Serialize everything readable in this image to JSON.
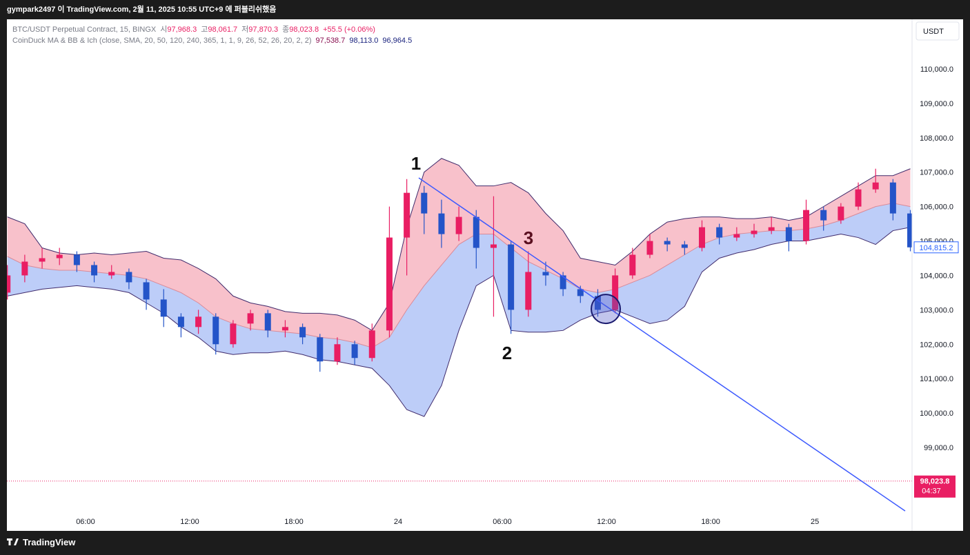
{
  "header": {
    "publisher": "gympark2497 이 TradingView.com, 2월 11, 2025 10:55 UTC+9 에 퍼블리쉬했음"
  },
  "legend": {
    "symbol": "BTC/USDT Perpetual Contract, 15, BINGX",
    "o_label": "시",
    "o": "97,968.3",
    "h_label": "고",
    "h": "98,061.7",
    "l_label": "저",
    "l": "97,870.3",
    "c_label": "종",
    "c": "98,023.8",
    "change": "+55.5 (+0.06%)",
    "indicator": "CoinDuck MA & BB & Ich (close, SMA, 20, 50, 120, 240, 365, 1, 1, 9, 26, 52, 26, 20, 2, 2)",
    "ind_values": [
      "97,538.7",
      "98,113.0",
      "96,964.5"
    ]
  },
  "currency_button": "USDT",
  "footer": {
    "brand": "TradingView"
  },
  "chart_data": {
    "type": "candlestick",
    "up_color": "#e91e63",
    "down_color": "#2454c8",
    "ylim": [
      96576,
      111402
    ],
    "yticks": [
      {
        "value": 99000,
        "label": "99,000.0"
      },
      {
        "value": 100000,
        "label": "100,000.0"
      },
      {
        "value": 101000,
        "label": "101,000.0"
      },
      {
        "value": 102000,
        "label": "102,000.0"
      },
      {
        "value": 103000,
        "label": "103,000.0"
      },
      {
        "value": 104000,
        "label": "104,000.0"
      },
      {
        "value": 105000,
        "label": "105,000.0"
      },
      {
        "value": 106000,
        "label": "106,000.0"
      },
      {
        "value": 107000,
        "label": "107,000.0"
      },
      {
        "value": 108000,
        "label": "108,000.0"
      },
      {
        "value": 109000,
        "label": "109,000.0"
      },
      {
        "value": 110000,
        "label": "110,000.0"
      }
    ],
    "xticks": [
      {
        "value": 4.5,
        "label": "06:00"
      },
      {
        "value": 10.5,
        "label": "12:00"
      },
      {
        "value": 16.5,
        "label": "18:00"
      },
      {
        "value": 22.5,
        "label": "24"
      },
      {
        "value": 28.5,
        "label": "06:00"
      },
      {
        "value": 34.5,
        "label": "12:00"
      },
      {
        "value": 40.5,
        "label": "18:00"
      },
      {
        "value": 46.5,
        "label": "25"
      }
    ],
    "grid": false,
    "candles": [
      [
        103500,
        104300,
        103300,
        104000
      ],
      [
        104000,
        104600,
        103800,
        104400
      ],
      [
        104400,
        104800,
        104200,
        104500
      ],
      [
        104500,
        104800,
        104300,
        104600
      ],
      [
        104600,
        104700,
        104100,
        104300
      ],
      [
        104300,
        104400,
        103800,
        104000
      ],
      [
        104000,
        104300,
        103900,
        104100
      ],
      [
        104100,
        104200,
        103600,
        103800
      ],
      [
        103800,
        103900,
        103000,
        103300
      ],
      [
        103300,
        103600,
        102500,
        102800
      ],
      [
        102800,
        102900,
        102200,
        102500
      ],
      [
        102500,
        103000,
        102300,
        102800
      ],
      [
        102800,
        102900,
        101700,
        102000
      ],
      [
        102000,
        102700,
        101900,
        102600
      ],
      [
        102600,
        103000,
        102400,
        102900
      ],
      [
        102900,
        103000,
        102200,
        102400
      ],
      [
        102400,
        102700,
        102200,
        102500
      ],
      [
        102500,
        102600,
        102000,
        102200
      ],
      [
        102200,
        102300,
        101200,
        101500
      ],
      [
        101500,
        102200,
        101400,
        102000
      ],
      [
        102000,
        102100,
        101400,
        101600
      ],
      [
        101600,
        102600,
        101500,
        102400
      ],
      [
        102400,
        106000,
        102200,
        105100
      ],
      [
        105100,
        106800,
        104000,
        106400
      ],
      [
        106400,
        106600,
        105200,
        105800
      ],
      [
        105800,
        106200,
        104800,
        105200
      ],
      [
        105200,
        106000,
        105000,
        105700
      ],
      [
        105700,
        105900,
        104200,
        104800
      ],
      [
        104800,
        106300,
        102800,
        104900
      ],
      [
        104900,
        105000,
        102300,
        103000
      ],
      [
        103000,
        104700,
        102800,
        104100
      ],
      [
        104100,
        104400,
        103700,
        104000
      ],
      [
        104000,
        104100,
        103400,
        103600
      ],
      [
        103600,
        103700,
        103200,
        103400
      ],
      [
        103400,
        103600,
        102800,
        103000
      ],
      [
        103000,
        104200,
        102900,
        104000
      ],
      [
        104000,
        104800,
        103900,
        104600
      ],
      [
        104600,
        105200,
        104500,
        105000
      ],
      [
        105000,
        105100,
        104700,
        104900
      ],
      [
        104900,
        105000,
        104600,
        104800
      ],
      [
        104800,
        105600,
        104700,
        105400
      ],
      [
        105400,
        105500,
        104900,
        105100
      ],
      [
        105100,
        105400,
        105000,
        105200
      ],
      [
        105200,
        105500,
        105100,
        105300
      ],
      [
        105300,
        105700,
        105200,
        105400
      ],
      [
        105400,
        105500,
        104700,
        105000
      ],
      [
        105000,
        106200,
        104900,
        105900
      ],
      [
        105900,
        106000,
        105300,
        105600
      ],
      [
        105600,
        106100,
        105500,
        106000
      ],
      [
        106000,
        106700,
        105900,
        106500
      ],
      [
        106500,
        107100,
        106400,
        106700
      ],
      [
        106700,
        106800,
        105600,
        105800
      ],
      [
        105800,
        105900,
        104700,
        104815.2
      ]
    ],
    "bands": {
      "upper": [
        105700,
        105500,
        104800,
        104650,
        104600,
        104650,
        104600,
        104650,
        104700,
        104500,
        104450,
        104200,
        103900,
        103400,
        103200,
        103100,
        102950,
        102900,
        102900,
        102850,
        102700,
        102400,
        103200,
        105400,
        107000,
        107400,
        107200,
        106600,
        106600,
        106700,
        106400,
        105800,
        105300,
        104500,
        104400,
        104300,
        104700,
        105200,
        105550,
        105650,
        105700,
        105700,
        105650,
        105650,
        105700,
        105600,
        105700,
        106000,
        106300,
        106600,
        106900,
        106900,
        107100
      ],
      "middle": [
        104550,
        104300,
        104200,
        104150,
        104150,
        104100,
        104050,
        104000,
        103900,
        103700,
        103500,
        103200,
        102800,
        102600,
        102450,
        102400,
        102350,
        102300,
        102200,
        102150,
        102050,
        101900,
        102200,
        103000,
        103700,
        104300,
        104900,
        105200,
        105200,
        104800,
        104400,
        104150,
        103900,
        103600,
        103500,
        103600,
        103800,
        104000,
        104300,
        104600,
        104900,
        105100,
        105200,
        105250,
        105300,
        105300,
        105350,
        105450,
        105600,
        105800,
        106000,
        106100,
        106000
      ],
      "lower": [
        103400,
        103500,
        103600,
        103650,
        103700,
        103650,
        103600,
        103500,
        103200,
        102900,
        102500,
        102200,
        101800,
        101700,
        101750,
        101750,
        101800,
        101700,
        101550,
        101500,
        101400,
        101300,
        100800,
        100100,
        99900,
        100800,
        102400,
        103700,
        104000,
        102400,
        102350,
        102350,
        102400,
        102700,
        102900,
        103000,
        102800,
        102600,
        102700,
        103100,
        104100,
        104500,
        104650,
        104750,
        104900,
        105000,
        105000,
        105100,
        105200,
        105100,
        104900,
        105300,
        105400
      ]
    },
    "trendline": {
      "x": [
        23.69,
        51.7
      ],
      "y": [
        106834,
        97154
      ]
    },
    "circle_marker": {
      "x": 34.46,
      "y": 103026
    },
    "annotations": [
      "1",
      "2",
      "3"
    ],
    "last_price": {
      "value": 104815.2,
      "label": "104,815.2"
    },
    "price_line": {
      "value": 98023.8,
      "label": "98,023.8",
      "countdown": "04:37"
    }
  }
}
